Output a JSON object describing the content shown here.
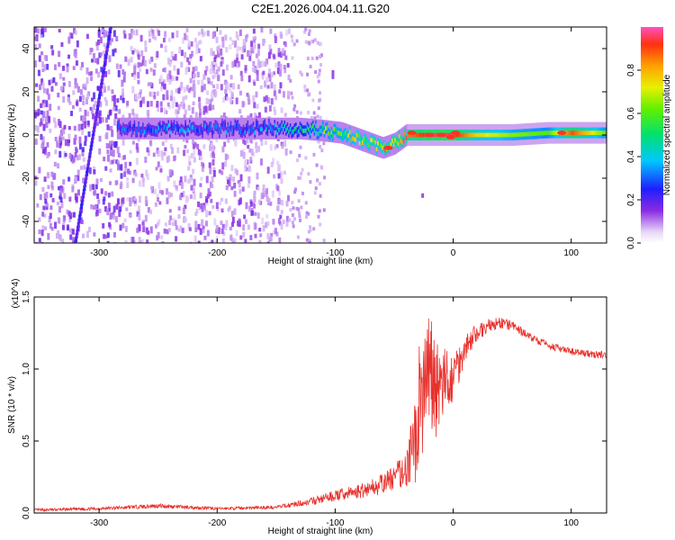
{
  "title": "C2E1.2026.004.04.11.G20",
  "chart_data": [
    {
      "type": "heatmap",
      "xlabel": "Height of straight line (km)",
      "ylabel": "Frequency (Hz)",
      "xlim": [
        -355,
        130
      ],
      "ylim": [
        -50,
        50
      ],
      "xticks": [
        -300,
        -200,
        -100,
        0,
        100
      ],
      "yticks": [
        -40,
        -20,
        0,
        20,
        40
      ],
      "xtick_labels": [
        "-300",
        "-200",
        "-100",
        "0",
        "100"
      ],
      "ytick_labels": [
        "-40",
        "-20",
        "0",
        "20",
        "40"
      ],
      "ridge": {
        "x": [
          -280,
          -240,
          -200,
          -160,
          -130,
          -110,
          -95,
          -80,
          -70,
          -60,
          -50,
          -40,
          -30,
          -20,
          -10,
          0,
          20,
          50,
          80,
          100,
          130
        ],
        "freq": [
          3,
          3,
          3,
          3,
          3,
          2,
          1,
          -2,
          -4,
          -6,
          -4,
          0,
          0,
          0,
          0,
          0,
          0,
          0,
          1,
          1,
          1
        ],
        "amplitude": [
          0.3,
          0.35,
          0.3,
          0.35,
          0.45,
          0.6,
          0.65,
          0.7,
          0.7,
          0.75,
          0.8,
          0.85,
          0.9,
          0.95,
          0.95,
          0.95,
          0.75,
          0.65,
          0.6,
          0.9,
          0.6
        ]
      },
      "colorbar": {
        "label": "Normalized spectral amplitude",
        "range": [
          0,
          1
        ],
        "ticks": [
          0.0,
          0.2,
          0.4,
          0.6,
          0.8
        ],
        "tick_labels": [
          "0.0",
          "0.2",
          "0.4",
          "0.6",
          "0.8"
        ]
      }
    },
    {
      "type": "line",
      "xlabel": "Height of straight line (km)",
      "ylabel": "SNR (10 * v/v)",
      "y_multiplier": "(x10^4)",
      "xlim": [
        -355,
        130
      ],
      "ylim": [
        0,
        1.5
      ],
      "xticks": [
        -300,
        -200,
        -100,
        0,
        100
      ],
      "yticks": [
        0.0,
        0.5,
        1.0,
        1.5
      ],
      "xtick_labels": [
        "-300",
        "-200",
        "-100",
        "0",
        "100"
      ],
      "ytick_labels": [
        "0.0",
        "0.5",
        "1.0",
        "1.5"
      ],
      "color": "#e8302c",
      "series": [
        {
          "name": "SNR",
          "x": [
            -355,
            -300,
            -250,
            -200,
            -150,
            -120,
            -100,
            -80,
            -60,
            -40,
            -30,
            -25,
            -20,
            -10,
            0,
            10,
            20,
            30,
            40,
            50,
            60,
            70,
            80,
            90,
            100,
            110,
            120,
            130
          ],
          "y": [
            0.02,
            0.03,
            0.05,
            0.03,
            0.04,
            0.08,
            0.12,
            0.15,
            0.2,
            0.3,
            0.55,
            0.9,
            0.95,
            0.85,
            0.95,
            1.15,
            1.25,
            1.3,
            1.32,
            1.3,
            1.25,
            1.2,
            1.17,
            1.14,
            1.12,
            1.11,
            1.1,
            1.1
          ]
        }
      ],
      "noise_amplitude": [
        0.01,
        0.01,
        0.015,
        0.01,
        0.012,
        0.025,
        0.04,
        0.05,
        0.07,
        0.12,
        0.35,
        0.45,
        0.45,
        0.3,
        0.2,
        0.1,
        0.06,
        0.05,
        0.04,
        0.035,
        0.03,
        0.025,
        0.025,
        0.025,
        0.025,
        0.025,
        0.025,
        0.025
      ]
    }
  ]
}
